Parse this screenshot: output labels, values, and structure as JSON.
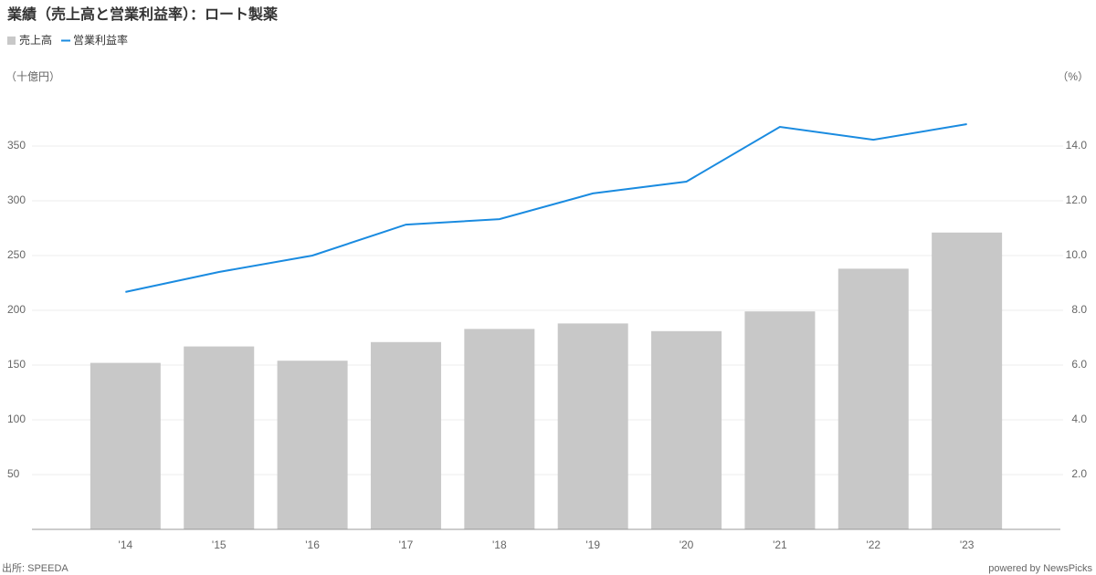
{
  "chart_data": {
    "type": "bar-line",
    "title": "業績（売上高と営業利益率）：ロート製薬",
    "y_unit": "（十億円）",
    "y2_unit": "（%）",
    "source": "出所: SPEEDA",
    "credit": "powered by NewsPicks",
    "categories": [
      "'14",
      "'15",
      "'16",
      "'17",
      "'18",
      "'19",
      "'20",
      "'21",
      "'22",
      "'23"
    ],
    "series": [
      {
        "name": "売上高",
        "type": "bar",
        "color": "#c8c8c8",
        "values": [
          152,
          167,
          154,
          171,
          183,
          188,
          181,
          199,
          238,
          271
        ]
      },
      {
        "name": "営業利益率",
        "type": "line",
        "axis": "y2",
        "color": "#1a8be0",
        "values": [
          8.67,
          9.4,
          10.0,
          11.13,
          11.33,
          12.27,
          12.7,
          14.7,
          14.23,
          14.8
        ]
      }
    ],
    "ylim": [
      0,
      400
    ],
    "yticks": [
      50,
      100,
      150,
      200,
      250,
      300,
      350
    ],
    "y2lim": [
      0,
      16
    ],
    "y2ticks": [
      {
        "value": 2,
        "label": "2.0"
      },
      {
        "value": 4,
        "label": "4.0"
      },
      {
        "value": 6,
        "label": "6.0"
      },
      {
        "value": 8,
        "label": "8.0"
      },
      {
        "value": 10,
        "label": "10.0"
      },
      {
        "value": 12,
        "label": "12.0"
      },
      {
        "value": 14,
        "label": "14.0"
      }
    ],
    "grid": true
  }
}
